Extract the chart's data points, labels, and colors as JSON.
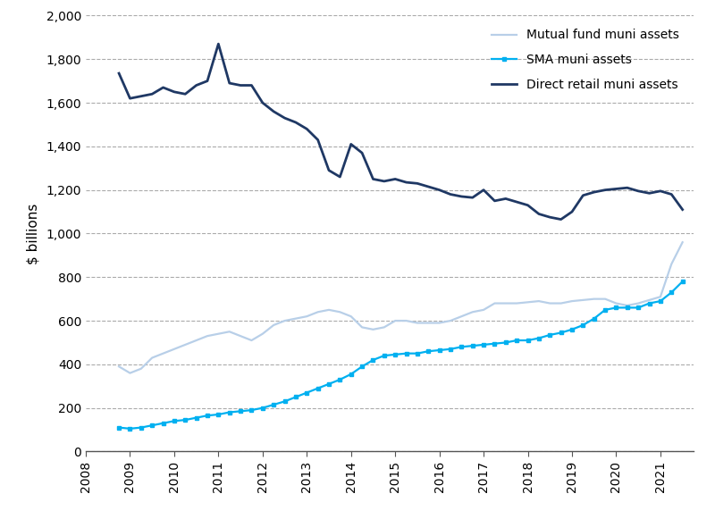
{
  "title": "",
  "ylabel": "$ billions",
  "ylim": [
    0,
    2000
  ],
  "yticks": [
    0,
    200,
    400,
    600,
    800,
    1000,
    1200,
    1400,
    1600,
    1800,
    2000
  ],
  "xlim": [
    2008.3,
    2021.75
  ],
  "xticks": [
    2008,
    2009,
    2010,
    2011,
    2012,
    2013,
    2014,
    2015,
    2016,
    2017,
    2018,
    2019,
    2020,
    2021
  ],
  "mutual_fund": {
    "label": "Mutual fund muni assets",
    "color": "#b8cfe8",
    "linewidth": 1.6,
    "x": [
      2008.75,
      2009.0,
      2009.25,
      2009.5,
      2009.75,
      2010.0,
      2010.25,
      2010.5,
      2010.75,
      2011.0,
      2011.25,
      2011.5,
      2011.75,
      2012.0,
      2012.25,
      2012.5,
      2012.75,
      2013.0,
      2013.25,
      2013.5,
      2013.75,
      2014.0,
      2014.25,
      2014.5,
      2014.75,
      2015.0,
      2015.25,
      2015.5,
      2015.75,
      2016.0,
      2016.25,
      2016.5,
      2016.75,
      2017.0,
      2017.25,
      2017.5,
      2017.75,
      2018.0,
      2018.25,
      2018.5,
      2018.75,
      2019.0,
      2019.25,
      2019.5,
      2019.75,
      2020.0,
      2020.25,
      2020.5,
      2020.75,
      2021.0,
      2021.25,
      2021.5
    ],
    "y": [
      390,
      360,
      380,
      430,
      450,
      470,
      490,
      510,
      530,
      540,
      550,
      530,
      510,
      540,
      580,
      600,
      610,
      620,
      640,
      650,
      640,
      620,
      570,
      560,
      570,
      600,
      600,
      590,
      590,
      590,
      600,
      620,
      640,
      650,
      680,
      680,
      680,
      685,
      690,
      680,
      680,
      690,
      695,
      700,
      700,
      680,
      670,
      680,
      695,
      710,
      860,
      960
    ]
  },
  "sma": {
    "label": "SMA muni assets",
    "color": "#00b0f0",
    "linewidth": 1.6,
    "marker": "s",
    "markersize": 3.5,
    "markevery": 1,
    "x": [
      2008.75,
      2009.0,
      2009.25,
      2009.5,
      2009.75,
      2010.0,
      2010.25,
      2010.5,
      2010.75,
      2011.0,
      2011.25,
      2011.5,
      2011.75,
      2012.0,
      2012.25,
      2012.5,
      2012.75,
      2013.0,
      2013.25,
      2013.5,
      2013.75,
      2014.0,
      2014.25,
      2014.5,
      2014.75,
      2015.0,
      2015.25,
      2015.5,
      2015.75,
      2016.0,
      2016.25,
      2016.5,
      2016.75,
      2017.0,
      2017.25,
      2017.5,
      2017.75,
      2018.0,
      2018.25,
      2018.5,
      2018.75,
      2019.0,
      2019.25,
      2019.5,
      2019.75,
      2020.0,
      2020.25,
      2020.5,
      2020.75,
      2021.0,
      2021.25,
      2021.5
    ],
    "y": [
      110,
      105,
      110,
      120,
      130,
      140,
      145,
      155,
      165,
      170,
      180,
      185,
      190,
      200,
      215,
      230,
      250,
      270,
      290,
      310,
      330,
      355,
      390,
      420,
      440,
      445,
      450,
      450,
      460,
      465,
      470,
      480,
      485,
      490,
      495,
      500,
      510,
      510,
      520,
      535,
      545,
      560,
      580,
      610,
      650,
      660,
      660,
      660,
      680,
      690,
      730,
      780
    ]
  },
  "direct_retail": {
    "label": "Direct retail muni assets",
    "color": "#1f3864",
    "linewidth": 2.0,
    "x": [
      2008.75,
      2009.0,
      2009.25,
      2009.5,
      2009.75,
      2010.0,
      2010.25,
      2010.5,
      2010.75,
      2011.0,
      2011.25,
      2011.5,
      2011.75,
      2012.0,
      2012.25,
      2012.5,
      2012.75,
      2013.0,
      2013.25,
      2013.5,
      2013.75,
      2014.0,
      2014.25,
      2014.5,
      2014.75,
      2015.0,
      2015.25,
      2015.5,
      2015.75,
      2016.0,
      2016.25,
      2016.5,
      2016.75,
      2017.0,
      2017.25,
      2017.5,
      2017.75,
      2018.0,
      2018.25,
      2018.5,
      2018.75,
      2019.0,
      2019.25,
      2019.5,
      2019.75,
      2020.0,
      2020.25,
      2020.5,
      2020.75,
      2021.0,
      2021.25,
      2021.5
    ],
    "y": [
      1735,
      1620,
      1630,
      1640,
      1670,
      1650,
      1640,
      1680,
      1700,
      1870,
      1690,
      1680,
      1680,
      1600,
      1560,
      1530,
      1510,
      1480,
      1430,
      1290,
      1260,
      1410,
      1370,
      1250,
      1240,
      1250,
      1235,
      1230,
      1215,
      1200,
      1180,
      1170,
      1165,
      1200,
      1150,
      1160,
      1145,
      1130,
      1090,
      1075,
      1065,
      1100,
      1175,
      1190,
      1200,
      1205,
      1210,
      1195,
      1185,
      1195,
      1180,
      1110
    ]
  },
  "bg_color": "#ffffff",
  "grid_color": "#aaaaaa",
  "border_color": "#555555",
  "frame_color": "#555555"
}
